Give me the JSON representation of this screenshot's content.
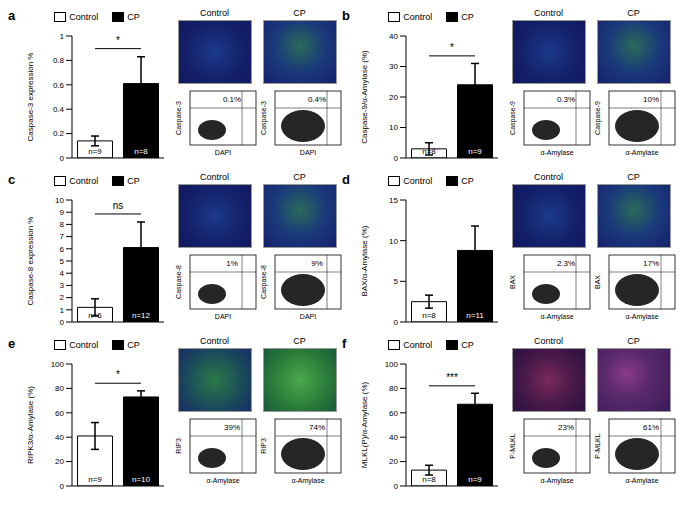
{
  "chart_data": [
    {
      "type": "bar",
      "title": "a",
      "y_label": "Caspase-3 expression %",
      "categories": [
        "Control",
        "CP"
      ],
      "values": [
        0.14,
        0.61
      ],
      "errors": [
        0.04,
        0.22
      ],
      "colors": [
        "#ffffff",
        "#000000"
      ],
      "n_labels": [
        "n=9",
        "n=8"
      ],
      "significance": "*",
      "ylim": [
        0,
        1
      ],
      "yticks": [
        0,
        0.2,
        0.4,
        0.6,
        0.8,
        1
      ],
      "legend": "top",
      "tick_labels": "y",
      "image_titles": [
        "Control",
        "CP"
      ],
      "flow_cytometry": {
        "x_label": "DAPI",
        "y_label": "Caspase-3",
        "gate_labels": [
          "0.1%",
          "0.4%"
        ]
      }
    },
    {
      "type": "bar",
      "title": "b",
      "y_label": "Caspase-9/α-Amylase (%)",
      "categories": [
        "Control",
        "CP"
      ],
      "values": [
        3,
        24
      ],
      "errors": [
        2,
        7
      ],
      "colors": [
        "#ffffff",
        "#000000"
      ],
      "n_labels": [
        "n=8",
        "n=9"
      ],
      "significance": "*",
      "ylim": [
        0,
        40
      ],
      "yticks": [
        0,
        10,
        20,
        30,
        40
      ],
      "legend": "top",
      "tick_labels": "y",
      "image_titles": [
        "Control",
        "CP"
      ],
      "flow_cytometry": {
        "x_label": "α-Amylase",
        "y_label": "Caspase-9",
        "gate_labels": [
          "0.3%",
          "10%"
        ]
      }
    },
    {
      "type": "bar",
      "title": "c",
      "y_label": "Caspase-8 expression %",
      "categories": [
        "Control",
        "CP"
      ],
      "values": [
        1.2,
        6.1
      ],
      "errors": [
        0.7,
        2.1
      ],
      "colors": [
        "#ffffff",
        "#000000"
      ],
      "n_labels": [
        "n=6",
        "n=12"
      ],
      "significance": "ns",
      "ylim": [
        0,
        10
      ],
      "yticks": [
        0,
        1,
        2,
        3,
        4,
        5,
        6,
        7,
        8,
        9,
        10
      ],
      "legend": "top",
      "tick_labels": "y",
      "image_titles": [
        "Control",
        "CP"
      ],
      "flow_cytometry": {
        "x_label": "DAPI",
        "y_label": "Caspase-8",
        "gate_labels": [
          "1%",
          "9%"
        ]
      }
    },
    {
      "type": "bar",
      "title": "d",
      "y_label": "BAX/α-Amylase (%)",
      "categories": [
        "Control",
        "CP"
      ],
      "values": [
        2.5,
        8.8
      ],
      "errors": [
        0.8,
        3
      ],
      "colors": [
        "#ffffff",
        "#000000"
      ],
      "n_labels": [
        "n=8",
        "n=11"
      ],
      "ylim": [
        0,
        15
      ],
      "yticks": [
        0,
        5,
        10,
        15
      ],
      "legend": "top",
      "tick_labels": "y",
      "image_titles": [
        "Control",
        "CP"
      ],
      "flow_cytometry": {
        "x_label": "α-Amylase",
        "y_label": "BAX",
        "gate_labels": [
          "2.3%",
          "17%"
        ]
      }
    },
    {
      "type": "bar",
      "title": "e",
      "y_label": "RIPK3/α-Amylase (%)",
      "categories": [
        "Control",
        "CP"
      ],
      "values": [
        41,
        73
      ],
      "errors": [
        11,
        5
      ],
      "colors": [
        "#ffffff",
        "#000000"
      ],
      "n_labels": [
        "n=9",
        "n=10"
      ],
      "significance": "*",
      "ylim": [
        0,
        100
      ],
      "yticks": [
        0,
        20,
        40,
        60,
        80,
        100
      ],
      "legend": "top",
      "tick_labels": "y",
      "image_titles": [
        "Control",
        "CP"
      ],
      "flow_cytometry": {
        "x_label": "α-Amylase",
        "y_label": "RIP3",
        "gate_labels": [
          "39%",
          "74%"
        ]
      }
    },
    {
      "type": "bar",
      "title": "f",
      "y_label": "MLKL(P)/α-Amylase (%)",
      "categories": [
        "Control",
        "CP"
      ],
      "values": [
        13,
        67
      ],
      "errors": [
        4,
        9
      ],
      "colors": [
        "#ffffff",
        "#000000"
      ],
      "n_labels": [
        "n=8",
        "n=9"
      ],
      "significance": "***",
      "ylim": [
        0,
        100
      ],
      "yticks": [
        0,
        20,
        40,
        60,
        80,
        100
      ],
      "legend": "top",
      "tick_labels": "y",
      "image_titles": [
        "Control",
        "CP"
      ],
      "flow_cytometry": {
        "x_label": "α-Amylase",
        "y_label": "P-MLKL",
        "gate_labels": [
          "23%",
          "61%"
        ]
      }
    }
  ]
}
